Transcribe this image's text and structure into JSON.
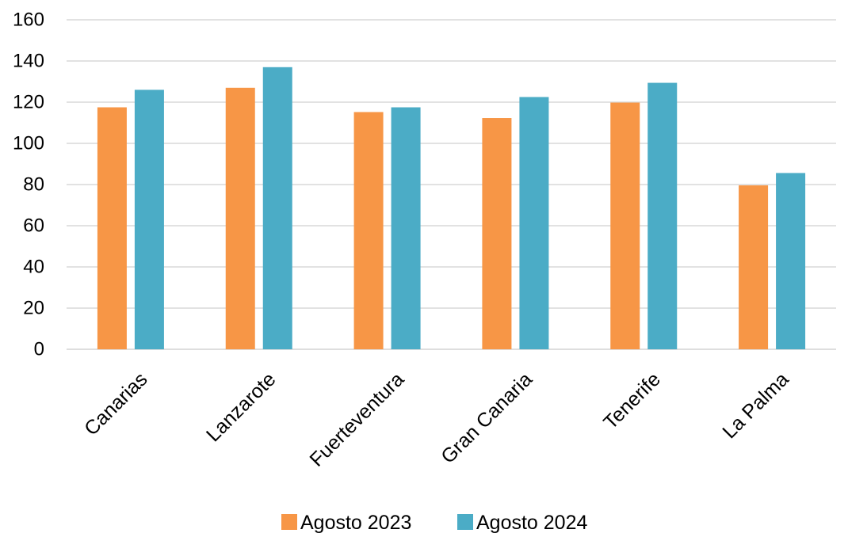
{
  "chart_data": {
    "type": "bar",
    "title": "",
    "xlabel": "",
    "ylabel": "",
    "categories": [
      "Canarias",
      "Lanzarote",
      "Fuerteventura",
      "Gran Canaria",
      "Tenerife",
      "La Palma"
    ],
    "series": [
      {
        "name": "Agosto 2023",
        "color": "#F79646",
        "values": [
          117.5,
          127,
          115.2,
          112.3,
          119.8,
          79.6
        ]
      },
      {
        "name": "Agosto 2024",
        "color": "#4BACC6",
        "values": [
          126,
          137,
          117.5,
          122.5,
          129.4,
          85.6
        ]
      }
    ],
    "ylim": [
      0,
      160
    ],
    "yticks": [
      "0",
      "20",
      "40",
      "60",
      "80",
      "100",
      "120",
      "140",
      "160"
    ],
    "grid": true,
    "legend_position": "bottom"
  }
}
